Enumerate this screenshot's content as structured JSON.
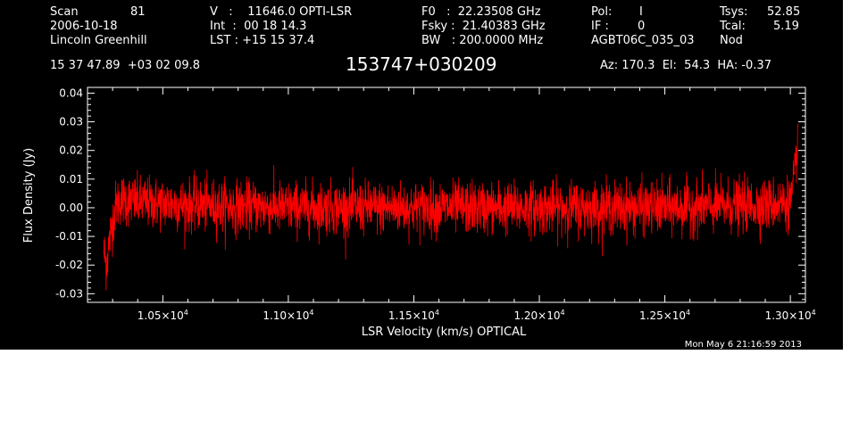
{
  "header": {
    "row1": [
      "Scan",
      "81",
      "V   :    11646.0 OPTI-LSR",
      "F0   :  22.23508 GHz",
      "Pol:",
      "I",
      "Tsys:",
      "52.85"
    ],
    "row2": [
      "2006-10-18",
      "Int  :  00 18 14.3",
      "Fsky :  21.40383 GHz",
      "IF :",
      "0",
      "Tcal:",
      "5.19"
    ],
    "row3": [
      "Lincoln Greenhill",
      "LST : +15 15 37.4",
      "BW   : 200.0000 MHz",
      "AGBT06C_035_03",
      "Nod"
    ],
    "coords": "15 37 47.89  +03 02 09.8",
    "object": "153747+030209",
    "azelha": "Az: 170.3  El:  54.3  HA: -0.37",
    "timestamp": "Mon May  6 21:16:59 2013"
  },
  "chart_data": {
    "type": "line",
    "series_color": "#ff0000",
    "xlabel": "LSR Velocity (km/s) OPTICAL",
    "ylabel": "Flux Density (Jy)",
    "xlim": [
      10200,
      13060
    ],
    "ylim": [
      -0.033,
      0.042
    ],
    "xticks": [
      {
        "value": 10500,
        "mant": "1.05",
        "exp": "4"
      },
      {
        "value": 11000,
        "mant": "1.10",
        "exp": "4"
      },
      {
        "value": 11500,
        "mant": "1.15",
        "exp": "4"
      },
      {
        "value": 12000,
        "mant": "1.20",
        "exp": "4"
      },
      {
        "value": 12500,
        "mant": "1.25",
        "exp": "4"
      },
      {
        "value": 13000,
        "mant": "1.30",
        "exp": "4"
      }
    ],
    "yticks": [
      {
        "value": 0.04,
        "label": "0.04"
      },
      {
        "value": 0.03,
        "label": "0.03"
      },
      {
        "value": 0.02,
        "label": "0.02"
      },
      {
        "value": 0.01,
        "label": "0.01"
      },
      {
        "value": 0.0,
        "label": "0.00"
      },
      {
        "value": -0.01,
        "label": "-0.01"
      },
      {
        "value": -0.02,
        "label": "-0.02"
      },
      {
        "value": -0.03,
        "label": "-0.03"
      }
    ],
    "spectrum_keypoints": {
      "x": [
        10265,
        10275,
        10290,
        10310,
        10330,
        10400,
        10600,
        11000,
        11500,
        12000,
        12500,
        12900,
        13000,
        13010,
        13020,
        13025,
        13030
      ],
      "y": [
        -0.015,
        -0.02,
        -0.01,
        0.0,
        0.003,
        0.002,
        0.001,
        0.0,
        0.0,
        0.0,
        0.0,
        0.001,
        0.002,
        0.006,
        0.012,
        0.02,
        0.026
      ]
    },
    "noise_rms": 0.0045
  }
}
